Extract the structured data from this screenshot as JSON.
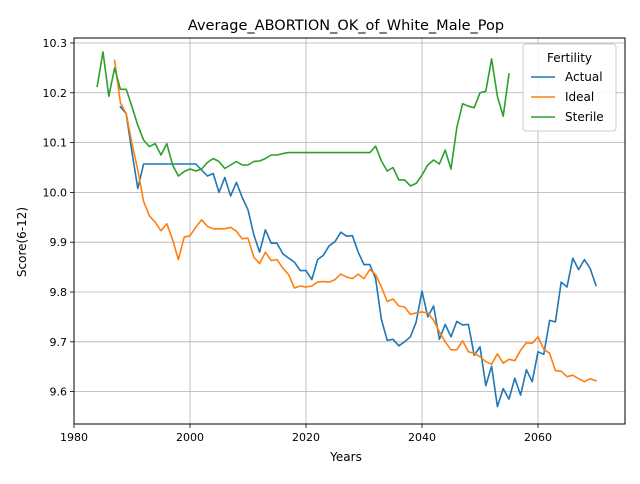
{
  "chart_data": {
    "type": "line",
    "title": "Average_ABORTION_OK_of_White_Male_Pop",
    "xlabel": "Years",
    "ylabel": "Score(6-12)",
    "xlim": [
      1980,
      2075
    ],
    "ylim": [
      9.535,
      10.31
    ],
    "xticks": [
      1980,
      2000,
      2020,
      2040,
      2060
    ],
    "yticks": [
      9.6,
      9.7,
      9.8,
      9.9,
      10.0,
      10.1,
      10.2,
      10.3
    ],
    "xtick_labels": [
      "1980",
      "2000",
      "2020",
      "2040",
      "2060"
    ],
    "ytick_labels": [
      "9.6",
      "9.7",
      "9.8",
      "9.9",
      "10.0",
      "10.1",
      "10.2",
      "10.3"
    ],
    "grid": true,
    "legend": {
      "title": "Fertility",
      "placement": "top-right"
    },
    "series": [
      {
        "name": "Actual",
        "color": "#1f77b4",
        "x": [
          1988,
          1989,
          1990,
          1991,
          1992,
          1993,
          1994,
          1995,
          1996,
          1997,
          1998,
          1999,
          2000,
          2001,
          2002,
          2003,
          2004,
          2005,
          2006,
          2007,
          2008,
          2009,
          2010,
          2011,
          2012,
          2013,
          2014,
          2015,
          2016,
          2017,
          2018,
          2019,
          2020,
          2021,
          2022,
          2023,
          2024,
          2025,
          2026,
          2027,
          2028,
          2029,
          2030,
          2031,
          2032,
          2033,
          2034,
          2035,
          2036,
          2037,
          2038,
          2039,
          2040,
          2041,
          2042,
          2043,
          2044,
          2045,
          2046,
          2047,
          2048,
          2049,
          2050,
          2051,
          2052,
          2053,
          2054,
          2055,
          2056,
          2057,
          2058,
          2059,
          2060,
          2061,
          2062,
          2063,
          2064,
          2065,
          2066,
          2067,
          2068,
          2069,
          2070
        ],
        "values": [
          10.172,
          10.158,
          10.08,
          10.008,
          10.057,
          10.057,
          10.057,
          10.057,
          10.057,
          10.057,
          10.057,
          10.057,
          10.057,
          10.057,
          10.045,
          10.033,
          10.038,
          10.0,
          10.03,
          9.993,
          10.02,
          9.99,
          9.965,
          9.915,
          9.88,
          9.925,
          9.898,
          9.898,
          9.877,
          9.868,
          9.86,
          9.843,
          9.843,
          9.825,
          9.865,
          9.874,
          9.893,
          9.901,
          9.92,
          9.912,
          9.913,
          9.88,
          9.855,
          9.855,
          9.827,
          9.745,
          9.703,
          9.705,
          9.692,
          9.7,
          9.71,
          9.74,
          9.802,
          9.75,
          9.772,
          9.705,
          9.735,
          9.71,
          9.741,
          9.734,
          9.735,
          9.673,
          9.69,
          9.612,
          9.651,
          9.57,
          9.606,
          9.585,
          9.627,
          9.593,
          9.644,
          9.62,
          9.68,
          9.675,
          9.743,
          9.74,
          9.82,
          9.81,
          9.868,
          9.845,
          9.865,
          9.847,
          9.813
        ]
      },
      {
        "name": "Ideal",
        "color": "#ff7f0e",
        "x": [
          1987,
          1988,
          1989,
          1990,
          1991,
          1992,
          1993,
          1994,
          1995,
          1996,
          1997,
          1998,
          1999,
          2000,
          2001,
          2002,
          2003,
          2004,
          2005,
          2006,
          2007,
          2008,
          2009,
          2010,
          2011,
          2012,
          2013,
          2014,
          2015,
          2016,
          2017,
          2018,
          2019,
          2020,
          2021,
          2022,
          2023,
          2024,
          2025,
          2026,
          2027,
          2028,
          2029,
          2030,
          2031,
          2032,
          2033,
          2034,
          2035,
          2036,
          2037,
          2038,
          2039,
          2040,
          2041,
          2042,
          2043,
          2044,
          2045,
          2046,
          2047,
          2048,
          2049,
          2050,
          2051,
          2052,
          2053,
          2054,
          2055,
          2056,
          2057,
          2058,
          2059,
          2060,
          2061,
          2062,
          2063,
          2064,
          2065,
          2066,
          2067,
          2068,
          2069,
          2070
        ],
        "values": [
          10.265,
          10.18,
          10.158,
          10.098,
          10.045,
          9.982,
          9.953,
          9.94,
          9.923,
          9.937,
          9.905,
          9.865,
          9.91,
          9.913,
          9.93,
          9.945,
          9.932,
          9.927,
          9.927,
          9.927,
          9.93,
          9.922,
          9.907,
          9.908,
          9.87,
          9.857,
          9.88,
          9.863,
          9.865,
          9.848,
          9.835,
          9.808,
          9.812,
          9.81,
          9.812,
          9.82,
          9.821,
          9.82,
          9.825,
          9.836,
          9.83,
          9.827,
          9.836,
          9.827,
          9.845,
          9.835,
          9.81,
          9.781,
          9.786,
          9.772,
          9.77,
          9.755,
          9.758,
          9.76,
          9.758,
          9.743,
          9.72,
          9.7,
          9.684,
          9.684,
          9.702,
          9.68,
          9.677,
          9.67,
          9.66,
          9.655,
          9.676,
          9.657,
          9.665,
          9.662,
          9.683,
          9.698,
          9.697,
          9.71,
          9.685,
          9.677,
          9.642,
          9.641,
          9.63,
          9.633,
          9.626,
          9.62,
          9.626,
          9.622
        ]
      },
      {
        "name": "Sterile",
        "color": "#2ca02c",
        "x": [
          1984,
          1985,
          1986,
          1987,
          1988,
          1989,
          1990,
          1991,
          1992,
          1993,
          1994,
          1995,
          1996,
          1997,
          1998,
          1999,
          2000,
          2001,
          2002,
          2003,
          2004,
          2005,
          2006,
          2007,
          2008,
          2009,
          2010,
          2011,
          2012,
          2013,
          2014,
          2015,
          2016,
          2017,
          2018,
          2019,
          2020,
          2021,
          2022,
          2023,
          2024,
          2025,
          2026,
          2027,
          2028,
          2029,
          2030,
          2031,
          2032,
          2033,
          2034,
          2035,
          2036,
          2037,
          2038,
          2039,
          2040,
          2041,
          2042,
          2043,
          2044,
          2045,
          2046,
          2047,
          2048,
          2049,
          2050,
          2051,
          2052,
          2053,
          2054,
          2055
        ],
        "values": [
          10.213,
          10.282,
          10.193,
          10.25,
          10.207,
          10.207,
          10.172,
          10.135,
          10.105,
          10.092,
          10.098,
          10.075,
          10.098,
          10.055,
          10.033,
          10.042,
          10.047,
          10.043,
          10.047,
          10.06,
          10.068,
          10.062,
          10.048,
          10.055,
          10.062,
          10.055,
          10.055,
          10.062,
          10.063,
          10.068,
          10.075,
          10.075,
          10.078,
          10.08,
          10.08,
          10.08,
          10.08,
          10.08,
          10.08,
          10.08,
          10.08,
          10.08,
          10.08,
          10.08,
          10.08,
          10.08,
          10.08,
          10.08,
          10.093,
          10.063,
          10.043,
          10.05,
          10.025,
          10.025,
          10.013,
          10.018,
          10.035,
          10.055,
          10.065,
          10.057,
          10.085,
          10.047,
          10.13,
          10.178,
          10.173,
          10.17,
          10.2,
          10.203,
          10.268,
          10.193,
          10.153,
          10.238
        ]
      }
    ]
  }
}
